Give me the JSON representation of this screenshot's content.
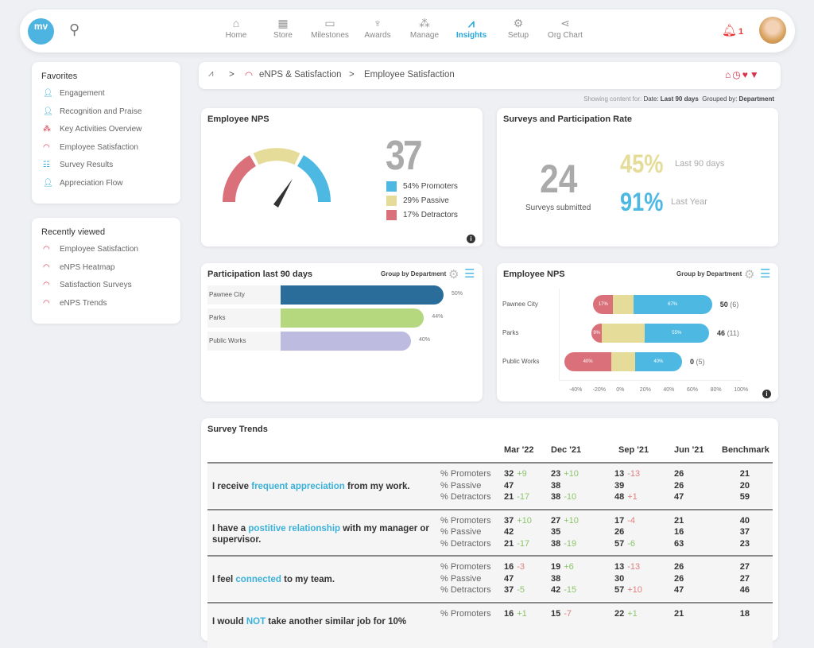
{
  "nav": {
    "logo": "mv",
    "items": [
      {
        "label": "Home",
        "icon": "home-icon",
        "glyph": "⌂"
      },
      {
        "label": "Store",
        "icon": "store-icon",
        "glyph": "▦"
      },
      {
        "label": "Milestones",
        "icon": "calendar-icon",
        "glyph": "▭"
      },
      {
        "label": "Awards",
        "icon": "trophy-icon",
        "glyph": "♆"
      },
      {
        "label": "Manage",
        "icon": "people-icon",
        "glyph": "⁂"
      },
      {
        "label": "Insights",
        "icon": "insights-icon",
        "glyph": "⩘",
        "active": true
      },
      {
        "label": "Setup",
        "icon": "gear-icon",
        "glyph": "⚙"
      },
      {
        "label": "Org Chart",
        "icon": "share-icon",
        "glyph": "⋖"
      }
    ],
    "notifications": "1"
  },
  "favorites": {
    "title": "Favorites",
    "items": [
      "Engagement",
      "Recognition and Praise",
      "Key Activities Overview",
      "Employee Satisfaction",
      "Survey Results",
      "Appreciation Flow"
    ]
  },
  "recent": {
    "title": "Recently viewed",
    "items": [
      "Employee Satisfaction",
      "eNPS Heatmap",
      "Satisfaction Surveys",
      "eNPS Trends"
    ]
  },
  "breadcrumb": {
    "sep": ">",
    "items": [
      "eNPS & Satisfaction",
      "Employee Satisfaction"
    ]
  },
  "filter": {
    "prefix": "Showing content for:",
    "date_label": "Date:",
    "date": "Last 90 days",
    "group_label": "Grouped by:",
    "group": "Department"
  },
  "enps": {
    "title": "Employee NPS",
    "score": "37",
    "legend": [
      {
        "label": "54% Promoters",
        "color": "#4db9e3"
      },
      {
        "label": "29% Passive",
        "color": "#e6dc9a"
      },
      {
        "label": "17% Detractors",
        "color": "#d9707a"
      }
    ]
  },
  "surveys": {
    "title": "Surveys and Participation Rate",
    "count": "24",
    "count_label": "Surveys submitted",
    "rate1": "45%",
    "rate1_label": "Last 90 days",
    "rate2": "91%",
    "rate2_label": "Last Year"
  },
  "participation": {
    "title": "Participation last 90 days",
    "group_by": "Group by Department",
    "rows": [
      {
        "label": "Pawnee City",
        "value": 50,
        "text": "50%",
        "color": "#2b6d9a"
      },
      {
        "label": "Parks",
        "value": 44,
        "text": "44%",
        "color": "#b5d77d"
      },
      {
        "label": "Public Works",
        "value": 40,
        "text": "40%",
        "color": "#bdbbe0"
      }
    ]
  },
  "enps_dept": {
    "title": "Employee NPS",
    "group_by": "Group by Department",
    "axis": [
      "-40%",
      "-20%",
      "0%",
      "20%",
      "40%",
      "60%",
      "80%",
      "100%"
    ],
    "rows": [
      {
        "label": "Pawnee City",
        "det": 17,
        "pas": 17,
        "pro": 67,
        "det_t": "17%",
        "pro_t": "67%",
        "score": "50",
        "n": "(6)"
      },
      {
        "label": "Parks",
        "det": 9,
        "pas": 36,
        "pro": 55,
        "det_t": "9%",
        "pro_t": "55%",
        "score": "46",
        "n": "(11)"
      },
      {
        "label": "Public Works",
        "det": 40,
        "pas": 20,
        "pro": 40,
        "det_t": "40%",
        "pro_t": "40%",
        "score": "0",
        "n": "(5)"
      }
    ]
  },
  "trends": {
    "title": "Survey Trends",
    "headers": [
      "Mar '22",
      "Dec '21",
      "Sep '21",
      "Jun '21",
      "Benchmark"
    ],
    "metrics": [
      "% Promoters",
      "% Passive",
      "% Detractors"
    ],
    "rows": [
      {
        "pre": "I receive ",
        "hl": "frequent appreciation",
        "post": " from my work.",
        "vals": [
          [
            [
              "32",
              "+9"
            ],
            [
              "23",
              "+10"
            ],
            [
              "13",
              "-13"
            ],
            [
              "26",
              ""
            ],
            [
              "21",
              ""
            ]
          ],
          [
            [
              "47",
              ""
            ],
            [
              "38",
              ""
            ],
            [
              "39",
              ""
            ],
            [
              "26",
              ""
            ],
            [
              "20",
              ""
            ]
          ],
          [
            [
              "21",
              "-17"
            ],
            [
              "38",
              "-10"
            ],
            [
              "48",
              "+1"
            ],
            [
              "47",
              ""
            ],
            [
              "59",
              ""
            ]
          ]
        ]
      },
      {
        "pre": "I have a ",
        "hl": "postitive relationship",
        "post": " with my manager or supervisor.",
        "vals": [
          [
            [
              "37",
              "+10"
            ],
            [
              "27",
              "+10"
            ],
            [
              "17",
              "-4"
            ],
            [
              "21",
              ""
            ],
            [
              "40",
              ""
            ]
          ],
          [
            [
              "42",
              ""
            ],
            [
              "35",
              ""
            ],
            [
              "26",
              ""
            ],
            [
              "16",
              ""
            ],
            [
              "37",
              ""
            ]
          ],
          [
            [
              "21",
              "-17"
            ],
            [
              "38",
              "-19"
            ],
            [
              "57",
              "-6"
            ],
            [
              "63",
              ""
            ],
            [
              "23",
              ""
            ]
          ]
        ]
      },
      {
        "pre": "I feel ",
        "hl": "connected",
        "post": " to my team.",
        "vals": [
          [
            [
              "16",
              "-3"
            ],
            [
              "19",
              "+6"
            ],
            [
              "13",
              "-13"
            ],
            [
              "26",
              ""
            ],
            [
              "27",
              ""
            ]
          ],
          [
            [
              "47",
              ""
            ],
            [
              "38",
              ""
            ],
            [
              "30",
              ""
            ],
            [
              "26",
              ""
            ],
            [
              "27",
              ""
            ]
          ],
          [
            [
              "37",
              "-5"
            ],
            [
              "42",
              "-15"
            ],
            [
              "57",
              "+10"
            ],
            [
              "47",
              ""
            ],
            [
              "46",
              ""
            ]
          ]
        ]
      },
      {
        "pre": "I would ",
        "hl": "NOT",
        "post": " take another similar job for 10%",
        "vals": [
          [
            [
              "16",
              "+1"
            ],
            [
              "15",
              "-7"
            ],
            [
              "22",
              "+1"
            ],
            [
              "21",
              ""
            ],
            [
              "18",
              ""
            ]
          ]
        ]
      }
    ]
  }
}
